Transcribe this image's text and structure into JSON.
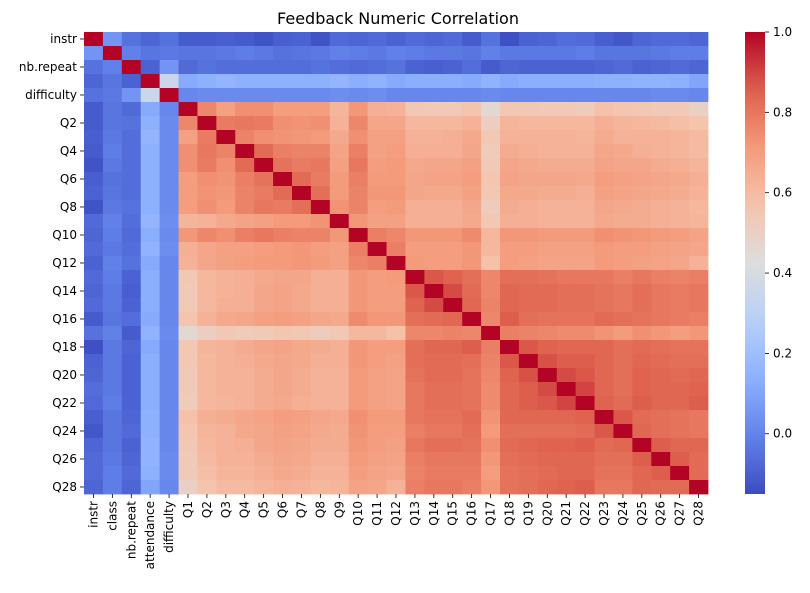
{
  "chart_data": {
    "type": "heatmap",
    "title": "Feedback Numeric Correlation",
    "xlabel": "",
    "ylabel": "",
    "colormap": "coolwarm",
    "vmin": -0.15,
    "vmax": 1.0,
    "colorbar": {
      "ticks": [
        0.0,
        0.2,
        0.4,
        0.6,
        0.8,
        1.0
      ],
      "tick_labels": [
        "0.0",
        "0.2",
        "0.4",
        "0.6",
        "0.8",
        "1.0"
      ]
    },
    "variables": [
      "instr",
      "class",
      "nb.repeat",
      "attendance",
      "difficulty",
      "Q1",
      "Q2",
      "Q3",
      "Q4",
      "Q5",
      "Q6",
      "Q7",
      "Q8",
      "Q9",
      "Q10",
      "Q11",
      "Q12",
      "Q13",
      "Q14",
      "Q15",
      "Q16",
      "Q17",
      "Q18",
      "Q19",
      "Q20",
      "Q21",
      "Q22",
      "Q23",
      "Q24",
      "Q25",
      "Q26",
      "Q27",
      "Q28"
    ],
    "x_tick_labels": [
      "instr",
      "class",
      "nb.repeat",
      "attendance",
      "difficulty",
      "Q1",
      "Q2",
      "Q3",
      "Q4",
      "Q5",
      "Q6",
      "Q7",
      "Q8",
      "Q9",
      "Q10",
      "Q11",
      "Q12",
      "Q13",
      "Q14",
      "Q15",
      "Q16",
      "Q17",
      "Q18",
      "Q19",
      "Q20",
      "Q21",
      "Q22",
      "Q23",
      "Q24",
      "Q25",
      "Q26",
      "Q27",
      "Q28"
    ],
    "y_tick_labels": [
      "instr",
      "",
      "nb.repeat",
      "",
      "difficulty",
      "",
      "Q2",
      "",
      "Q4",
      "",
      "Q6",
      "",
      "Q8",
      "",
      "Q10",
      "",
      "Q12",
      "",
      "Q14",
      "",
      "Q16",
      "",
      "Q18",
      "",
      "Q20",
      "",
      "Q22",
      "",
      "Q24",
      "",
      "Q26",
      "",
      "Q28"
    ],
    "matrix": [
      [
        1.0,
        0.05,
        -0.05,
        -0.08,
        -0.05,
        -0.11,
        -0.11,
        -0.1,
        -0.11,
        -0.13,
        -0.1,
        -0.09,
        -0.13,
        -0.07,
        -0.08,
        -0.07,
        -0.09,
        -0.07,
        -0.08,
        -0.07,
        -0.11,
        -0.05,
        -0.14,
        -0.09,
        -0.08,
        -0.06,
        -0.07,
        -0.1,
        -0.12,
        -0.08,
        -0.07,
        -0.07,
        -0.08
      ],
      [
        0.05,
        1.0,
        -0.01,
        -0.04,
        -0.03,
        -0.04,
        -0.04,
        -0.03,
        -0.02,
        -0.03,
        -0.05,
        -0.04,
        -0.03,
        -0.01,
        -0.02,
        -0.03,
        -0.01,
        -0.02,
        -0.03,
        -0.03,
        -0.04,
        -0.01,
        -0.03,
        -0.03,
        -0.03,
        -0.03,
        -0.02,
        -0.04,
        -0.04,
        -0.04,
        -0.03,
        -0.02,
        -0.02
      ],
      [
        -0.05,
        -0.01,
        1.0,
        -0.09,
        0.05,
        -0.07,
        -0.05,
        -0.06,
        -0.06,
        -0.06,
        -0.06,
        -0.06,
        -0.05,
        -0.06,
        -0.07,
        -0.06,
        -0.05,
        -0.09,
        -0.1,
        -0.09,
        -0.06,
        -0.11,
        -0.08,
        -0.09,
        -0.09,
        -0.09,
        -0.09,
        -0.08,
        -0.07,
        -0.09,
        -0.08,
        -0.07,
        -0.08
      ],
      [
        -0.08,
        -0.04,
        -0.09,
        1.0,
        0.35,
        0.12,
        0.14,
        0.16,
        0.14,
        0.14,
        0.14,
        0.14,
        0.14,
        0.16,
        0.13,
        0.15,
        0.12,
        0.13,
        0.13,
        0.13,
        0.12,
        0.15,
        0.12,
        0.13,
        0.13,
        0.13,
        0.13,
        0.14,
        0.14,
        0.15,
        0.15,
        0.14,
        0.1
      ],
      [
        -0.05,
        -0.03,
        0.05,
        0.35,
        1.0,
        0.01,
        0.02,
        0.02,
        0.02,
        0.02,
        0.02,
        0.02,
        0.02,
        0.03,
        0.02,
        0.03,
        0.01,
        0.01,
        0.01,
        0.01,
        0.01,
        0.02,
        0.01,
        0.01,
        0.01,
        0.01,
        0.01,
        0.01,
        0.01,
        0.01,
        0.02,
        0.02,
        0.01
      ],
      [
        -0.11,
        -0.04,
        -0.07,
        0.12,
        0.01,
        1.0,
        0.76,
        0.69,
        0.74,
        0.74,
        0.7,
        0.7,
        0.7,
        0.62,
        0.72,
        0.64,
        0.63,
        0.55,
        0.54,
        0.54,
        0.57,
        0.46,
        0.55,
        0.55,
        0.54,
        0.54,
        0.53,
        0.58,
        0.56,
        0.55,
        0.54,
        0.54,
        0.5
      ],
      [
        -0.11,
        -0.04,
        -0.05,
        0.14,
        0.02,
        0.76,
        1.0,
        0.79,
        0.8,
        0.79,
        0.74,
        0.73,
        0.74,
        0.63,
        0.76,
        0.67,
        0.67,
        0.61,
        0.61,
        0.61,
        0.63,
        0.51,
        0.62,
        0.61,
        0.61,
        0.61,
        0.61,
        0.64,
        0.62,
        0.61,
        0.6,
        0.59,
        0.57
      ],
      [
        -0.1,
        -0.03,
        -0.06,
        0.16,
        0.02,
        0.69,
        0.79,
        1.0,
        0.77,
        0.74,
        0.73,
        0.72,
        0.71,
        0.66,
        0.74,
        0.69,
        0.69,
        0.63,
        0.63,
        0.64,
        0.66,
        0.55,
        0.63,
        0.63,
        0.63,
        0.63,
        0.62,
        0.65,
        0.63,
        0.63,
        0.63,
        0.62,
        0.6
      ],
      [
        -0.11,
        -0.02,
        -0.06,
        0.14,
        0.02,
        0.74,
        0.8,
        0.77,
        1.0,
        0.83,
        0.78,
        0.77,
        0.77,
        0.68,
        0.78,
        0.69,
        0.7,
        0.64,
        0.64,
        0.64,
        0.67,
        0.53,
        0.65,
        0.64,
        0.63,
        0.63,
        0.63,
        0.67,
        0.66,
        0.64,
        0.63,
        0.62,
        0.6
      ],
      [
        -0.13,
        -0.03,
        -0.06,
        0.14,
        0.02,
        0.74,
        0.79,
        0.74,
        0.83,
        1.0,
        0.81,
        0.79,
        0.8,
        0.69,
        0.8,
        0.7,
        0.71,
        0.66,
        0.67,
        0.67,
        0.69,
        0.54,
        0.67,
        0.66,
        0.65,
        0.65,
        0.65,
        0.68,
        0.67,
        0.67,
        0.65,
        0.64,
        0.62
      ],
      [
        -0.1,
        -0.05,
        -0.06,
        0.14,
        0.02,
        0.7,
        0.74,
        0.73,
        0.78,
        0.81,
        1.0,
        0.83,
        0.79,
        0.71,
        0.78,
        0.71,
        0.71,
        0.67,
        0.68,
        0.68,
        0.7,
        0.56,
        0.68,
        0.67,
        0.67,
        0.67,
        0.66,
        0.7,
        0.69,
        0.68,
        0.67,
        0.66,
        0.64
      ],
      [
        -0.09,
        -0.04,
        -0.06,
        0.14,
        0.02,
        0.7,
        0.73,
        0.72,
        0.77,
        0.79,
        0.83,
        1.0,
        0.82,
        0.71,
        0.77,
        0.72,
        0.72,
        0.67,
        0.66,
        0.66,
        0.69,
        0.55,
        0.66,
        0.66,
        0.65,
        0.65,
        0.64,
        0.69,
        0.68,
        0.67,
        0.66,
        0.65,
        0.63
      ],
      [
        -0.13,
        -0.03,
        -0.05,
        0.14,
        0.02,
        0.7,
        0.74,
        0.71,
        0.77,
        0.8,
        0.79,
        0.82,
        1.0,
        0.73,
        0.77,
        0.7,
        0.71,
        0.64,
        0.64,
        0.64,
        0.67,
        0.52,
        0.65,
        0.64,
        0.63,
        0.63,
        0.63,
        0.67,
        0.66,
        0.65,
        0.64,
        0.63,
        0.61
      ],
      [
        -0.07,
        -0.01,
        -0.06,
        0.16,
        0.03,
        0.62,
        0.63,
        0.66,
        0.68,
        0.69,
        0.71,
        0.71,
        0.73,
        1.0,
        0.72,
        0.69,
        0.69,
        0.64,
        0.64,
        0.64,
        0.66,
        0.55,
        0.64,
        0.64,
        0.63,
        0.63,
        0.63,
        0.66,
        0.65,
        0.65,
        0.64,
        0.63,
        0.62
      ],
      [
        -0.08,
        -0.02,
        -0.07,
        0.13,
        0.02,
        0.72,
        0.76,
        0.74,
        0.78,
        0.8,
        0.78,
        0.77,
        0.77,
        0.72,
        1.0,
        0.78,
        0.76,
        0.72,
        0.72,
        0.72,
        0.75,
        0.61,
        0.72,
        0.72,
        0.71,
        0.71,
        0.71,
        0.74,
        0.73,
        0.72,
        0.71,
        0.7,
        0.68
      ],
      [
        -0.07,
        -0.03,
        -0.06,
        0.15,
        0.03,
        0.64,
        0.67,
        0.69,
        0.69,
        0.7,
        0.71,
        0.72,
        0.7,
        0.69,
        0.78,
        1.0,
        0.78,
        0.7,
        0.7,
        0.7,
        0.72,
        0.61,
        0.7,
        0.7,
        0.69,
        0.69,
        0.69,
        0.71,
        0.7,
        0.7,
        0.69,
        0.68,
        0.67
      ],
      [
        -0.09,
        -0.01,
        -0.05,
        0.12,
        0.01,
        0.63,
        0.67,
        0.69,
        0.7,
        0.71,
        0.71,
        0.72,
        0.71,
        0.69,
        0.76,
        0.78,
        1.0,
        0.71,
        0.7,
        0.7,
        0.72,
        0.58,
        0.7,
        0.69,
        0.68,
        0.68,
        0.68,
        0.71,
        0.7,
        0.69,
        0.68,
        0.67,
        0.63
      ],
      [
        -0.07,
        -0.02,
        -0.09,
        0.13,
        0.01,
        0.55,
        0.61,
        0.63,
        0.64,
        0.66,
        0.67,
        0.67,
        0.64,
        0.64,
        0.72,
        0.7,
        0.71,
        1.0,
        0.87,
        0.85,
        0.82,
        0.76,
        0.82,
        0.82,
        0.81,
        0.8,
        0.8,
        0.8,
        0.78,
        0.8,
        0.78,
        0.77,
        0.78
      ],
      [
        -0.08,
        -0.03,
        -0.1,
        0.13,
        0.01,
        0.54,
        0.61,
        0.63,
        0.64,
        0.67,
        0.68,
        0.66,
        0.64,
        0.64,
        0.72,
        0.7,
        0.7,
        0.87,
        1.0,
        0.89,
        0.83,
        0.76,
        0.84,
        0.83,
        0.83,
        0.82,
        0.82,
        0.81,
        0.8,
        0.82,
        0.8,
        0.79,
        0.8
      ],
      [
        -0.07,
        -0.03,
        -0.09,
        0.13,
        0.01,
        0.54,
        0.61,
        0.64,
        0.64,
        0.67,
        0.68,
        0.66,
        0.64,
        0.64,
        0.72,
        0.7,
        0.7,
        0.85,
        0.89,
        1.0,
        0.84,
        0.77,
        0.84,
        0.83,
        0.83,
        0.82,
        0.82,
        0.81,
        0.8,
        0.82,
        0.8,
        0.79,
        0.8
      ],
      [
        -0.11,
        -0.04,
        -0.06,
        0.12,
        0.01,
        0.57,
        0.63,
        0.66,
        0.67,
        0.69,
        0.7,
        0.69,
        0.67,
        0.66,
        0.75,
        0.72,
        0.72,
        0.82,
        0.83,
        0.84,
        1.0,
        0.76,
        0.86,
        0.82,
        0.81,
        0.81,
        0.81,
        0.83,
        0.82,
        0.81,
        0.8,
        0.79,
        0.78
      ],
      [
        -0.05,
        -0.01,
        -0.11,
        0.15,
        0.02,
        0.46,
        0.51,
        0.55,
        0.53,
        0.54,
        0.56,
        0.55,
        0.52,
        0.55,
        0.61,
        0.61,
        0.58,
        0.76,
        0.76,
        0.77,
        0.76,
        1.0,
        0.78,
        0.77,
        0.76,
        0.75,
        0.75,
        0.73,
        0.71,
        0.74,
        0.72,
        0.7,
        0.72
      ],
      [
        -0.14,
        -0.03,
        -0.08,
        0.12,
        0.01,
        0.55,
        0.62,
        0.63,
        0.65,
        0.67,
        0.68,
        0.66,
        0.65,
        0.64,
        0.72,
        0.7,
        0.7,
        0.82,
        0.84,
        0.84,
        0.86,
        0.78,
        1.0,
        0.87,
        0.85,
        0.84,
        0.84,
        0.84,
        0.82,
        0.83,
        0.82,
        0.81,
        0.81
      ],
      [
        -0.09,
        -0.03,
        -0.09,
        0.13,
        0.01,
        0.55,
        0.61,
        0.63,
        0.64,
        0.66,
        0.67,
        0.66,
        0.64,
        0.64,
        0.72,
        0.7,
        0.69,
        0.82,
        0.83,
        0.83,
        0.82,
        0.77,
        0.87,
        1.0,
        0.88,
        0.86,
        0.86,
        0.84,
        0.82,
        0.84,
        0.83,
        0.82,
        0.82
      ],
      [
        -0.08,
        -0.03,
        -0.09,
        0.13,
        0.01,
        0.54,
        0.61,
        0.63,
        0.63,
        0.65,
        0.67,
        0.65,
        0.63,
        0.63,
        0.71,
        0.69,
        0.68,
        0.81,
        0.83,
        0.83,
        0.81,
        0.76,
        0.85,
        0.88,
        1.0,
        0.89,
        0.87,
        0.84,
        0.82,
        0.85,
        0.84,
        0.83,
        0.84
      ],
      [
        -0.06,
        -0.03,
        -0.09,
        0.13,
        0.01,
        0.54,
        0.61,
        0.63,
        0.63,
        0.65,
        0.67,
        0.65,
        0.63,
        0.63,
        0.71,
        0.69,
        0.68,
        0.8,
        0.82,
        0.82,
        0.81,
        0.75,
        0.84,
        0.86,
        0.89,
        1.0,
        0.9,
        0.84,
        0.82,
        0.85,
        0.84,
        0.84,
        0.85
      ],
      [
        -0.07,
        -0.02,
        -0.09,
        0.13,
        0.01,
        0.53,
        0.61,
        0.62,
        0.63,
        0.65,
        0.66,
        0.64,
        0.63,
        0.63,
        0.71,
        0.69,
        0.68,
        0.8,
        0.82,
        0.82,
        0.81,
        0.75,
        0.84,
        0.86,
        0.87,
        0.9,
        1.0,
        0.85,
        0.83,
        0.86,
        0.84,
        0.84,
        0.86
      ],
      [
        -0.1,
        -0.04,
        -0.08,
        0.14,
        0.01,
        0.58,
        0.64,
        0.65,
        0.67,
        0.68,
        0.7,
        0.69,
        0.67,
        0.66,
        0.74,
        0.71,
        0.71,
        0.8,
        0.81,
        0.81,
        0.83,
        0.73,
        0.84,
        0.84,
        0.84,
        0.84,
        0.85,
        1.0,
        0.87,
        0.83,
        0.82,
        0.81,
        0.8
      ],
      [
        -0.12,
        -0.04,
        -0.07,
        0.14,
        0.01,
        0.56,
        0.62,
        0.63,
        0.66,
        0.67,
        0.69,
        0.68,
        0.66,
        0.65,
        0.73,
        0.7,
        0.7,
        0.78,
        0.8,
        0.8,
        0.82,
        0.71,
        0.82,
        0.82,
        0.82,
        0.82,
        0.83,
        0.87,
        1.0,
        0.84,
        0.82,
        0.81,
        0.8
      ],
      [
        -0.08,
        -0.04,
        -0.09,
        0.15,
        0.01,
        0.55,
        0.61,
        0.63,
        0.64,
        0.67,
        0.68,
        0.67,
        0.65,
        0.65,
        0.72,
        0.7,
        0.69,
        0.8,
        0.82,
        0.82,
        0.81,
        0.74,
        0.83,
        0.84,
        0.85,
        0.85,
        0.86,
        0.83,
        0.84,
        1.0,
        0.86,
        0.84,
        0.84
      ],
      [
        -0.07,
        -0.03,
        -0.08,
        0.15,
        0.02,
        0.54,
        0.6,
        0.63,
        0.63,
        0.65,
        0.67,
        0.66,
        0.64,
        0.64,
        0.71,
        0.69,
        0.68,
        0.78,
        0.8,
        0.8,
        0.8,
        0.72,
        0.82,
        0.83,
        0.84,
        0.84,
        0.84,
        0.82,
        0.82,
        0.86,
        1.0,
        0.86,
        0.83
      ],
      [
        -0.07,
        -0.02,
        -0.07,
        0.14,
        0.02,
        0.54,
        0.59,
        0.62,
        0.62,
        0.64,
        0.66,
        0.65,
        0.63,
        0.63,
        0.7,
        0.68,
        0.67,
        0.77,
        0.79,
        0.79,
        0.79,
        0.7,
        0.81,
        0.82,
        0.83,
        0.84,
        0.84,
        0.81,
        0.81,
        0.84,
        0.86,
        1.0,
        0.83
      ],
      [
        -0.08,
        -0.02,
        -0.08,
        0.1,
        0.01,
        0.5,
        0.57,
        0.6,
        0.6,
        0.62,
        0.64,
        0.63,
        0.61,
        0.62,
        0.68,
        0.67,
        0.63,
        0.78,
        0.8,
        0.8,
        0.78,
        0.72,
        0.81,
        0.82,
        0.84,
        0.85,
        0.86,
        0.8,
        0.8,
        0.84,
        0.83,
        0.83,
        1.0
      ]
    ]
  }
}
